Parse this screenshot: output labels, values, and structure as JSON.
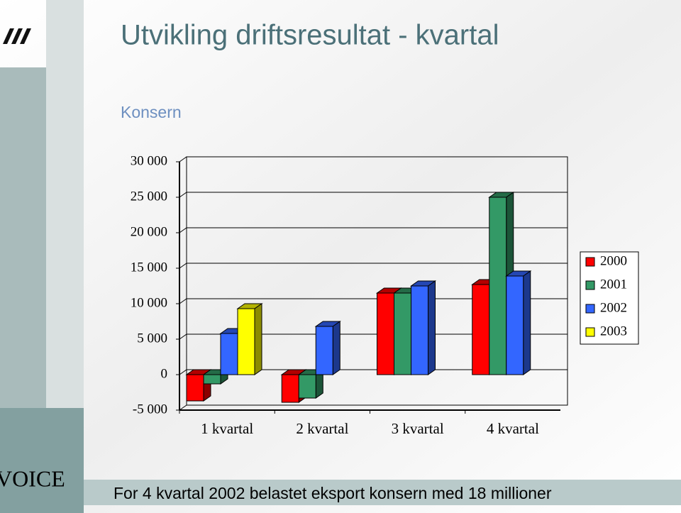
{
  "chart_data": {
    "type": "bar3d",
    "title": "Utvikling driftsresultat - kvartal",
    "subtitle": "Konsern",
    "footnote": "For 4 kvartal 2002 belastet eksport konsern med 18 millioner",
    "categories": [
      "1 kvartal",
      "2 kvartal",
      "3 kvartal",
      "4 kvartal"
    ],
    "series": [
      {
        "name": "2000",
        "color": "#ff0000",
        "values": [
          -3700,
          -3900,
          11500,
          12700
        ]
      },
      {
        "name": "2001",
        "color": "#339966",
        "values": [
          -1300,
          -3300,
          11500,
          25000
        ]
      },
      {
        "name": "2002",
        "color": "#3366ff",
        "values": [
          5800,
          6800,
          12500,
          13900
        ]
      },
      {
        "name": "2003",
        "color": "#ffff00",
        "values": [
          9300,
          null,
          null,
          null
        ]
      }
    ],
    "ylim": [
      -5000,
      30000
    ],
    "yticks": [
      {
        "value": -5000,
        "label": "-5 000"
      },
      0,
      {
        "value": 5000,
        "label": "5 000"
      },
      {
        "value": 10000,
        "label": "10 000"
      },
      {
        "value": 15000,
        "label": "15 000"
      },
      {
        "value": 20000,
        "label": "20 000"
      },
      {
        "value": 25000,
        "label": "25 000"
      },
      {
        "value": 30000,
        "label": "30 000"
      }
    ],
    "grid": true,
    "legend": "right"
  },
  "brand": "VOICE"
}
